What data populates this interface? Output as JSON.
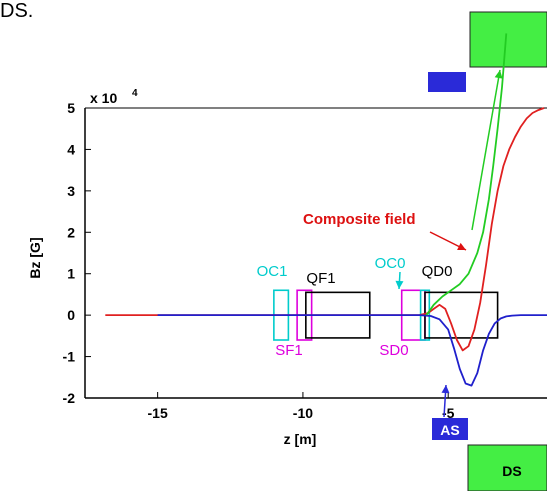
{
  "page_header_fragment": "DS.",
  "chart_data": {
    "type": "line",
    "xlabel": "z [m]",
    "ylabel": "Bz [G]",
    "y_exponent_label": "x 10",
    "y_exponent_power": "4",
    "xlim": [
      -17.5,
      -1.6
    ],
    "ylim": [
      -2,
      5
    ],
    "x_ticks": [
      -15,
      -10,
      -5
    ],
    "x_tick_labels": [
      "-15",
      "-10",
      "-5"
    ],
    "y_ticks": [
      -2,
      -1,
      0,
      1,
      2,
      3,
      4,
      5
    ],
    "y_tick_labels": [
      "-2",
      "-1",
      "0",
      "1",
      "2",
      "3",
      "4",
      "5"
    ],
    "grid": false,
    "series": [
      {
        "name": "Composite field",
        "color": "#e02020",
        "x": [
          -16.8,
          -6.0,
          -5.7,
          -5.5,
          -5.3,
          -5.1,
          -4.9,
          -4.7,
          -4.5,
          -4.3,
          -4.1,
          -3.9,
          -3.7,
          -3.5,
          -3.3,
          -3.1,
          -2.9,
          -2.7,
          -2.5,
          -2.3,
          -2.1,
          -1.9,
          -1.7
        ],
        "y": [
          0,
          0,
          0.05,
          0.15,
          0.25,
          0.15,
          -0.2,
          -0.6,
          -0.85,
          -0.75,
          -0.35,
          0.3,
          1.2,
          2.2,
          3.0,
          3.6,
          4.0,
          4.3,
          4.55,
          4.75,
          4.88,
          4.95,
          5.0
        ]
      },
      {
        "name": "",
        "color": "#2020cc",
        "x": [
          -15,
          -6.0,
          -5.6,
          -5.3,
          -5.0,
          -4.8,
          -4.6,
          -4.4,
          -4.2,
          -4.0,
          -3.8,
          -3.6,
          -3.4,
          -3.2,
          -3.0,
          -2.8,
          -2.5,
          -2.0,
          -1.6
        ],
        "y": [
          0,
          0,
          -0.02,
          -0.1,
          -0.35,
          -0.8,
          -1.3,
          -1.65,
          -1.7,
          -1.4,
          -0.85,
          -0.45,
          -0.2,
          -0.08,
          -0.03,
          -0.01,
          0,
          0,
          0
        ]
      },
      {
        "name": "",
        "color": "#22cc22",
        "x": [
          -5.75,
          -5.5,
          -5.2,
          -4.9,
          -4.6,
          -4.3,
          -4.0,
          -3.8,
          -3.6,
          -3.45,
          -3.3,
          -3.15,
          -3.0
        ],
        "y": [
          0,
          0.25,
          0.45,
          0.6,
          0.75,
          1.0,
          1.5,
          2.0,
          2.8,
          3.6,
          4.5,
          5.5,
          6.8
        ]
      }
    ],
    "magnets": [
      {
        "label": "OC1",
        "color": "#00cccc",
        "x1": -11.0,
        "x2": -10.5,
        "y1": -0.6,
        "y2": 0.6
      },
      {
        "label": "SF1",
        "color": "#dd00dd",
        "x1": -10.2,
        "x2": -9.7,
        "y1": -0.6,
        "y2": 0.6
      },
      {
        "label": "QF1",
        "color": "#000000",
        "x1": -9.9,
        "x2": -7.7,
        "y1": -0.55,
        "y2": 0.55
      },
      {
        "label": "SD0",
        "color": "#dd00dd",
        "x1": -6.6,
        "x2": -5.8,
        "y1": -0.6,
        "y2": 0.6
      },
      {
        "label": "OC0",
        "color": "#00cccc",
        "x1": -5.95,
        "x2": -5.65,
        "y1": -0.6,
        "y2": 0.6
      },
      {
        "label": "QD0",
        "color": "#000000",
        "x1": -5.8,
        "x2": -3.3,
        "y1": -0.55,
        "y2": 0.55
      }
    ],
    "annotations": [
      {
        "text": "Composite field",
        "color": "#dd1111"
      },
      {
        "text": "AS",
        "color": "#ffffff",
        "background": "#2a2ad8"
      },
      {
        "text": "DS",
        "color": "#000000",
        "background": "#44ee44"
      }
    ]
  }
}
